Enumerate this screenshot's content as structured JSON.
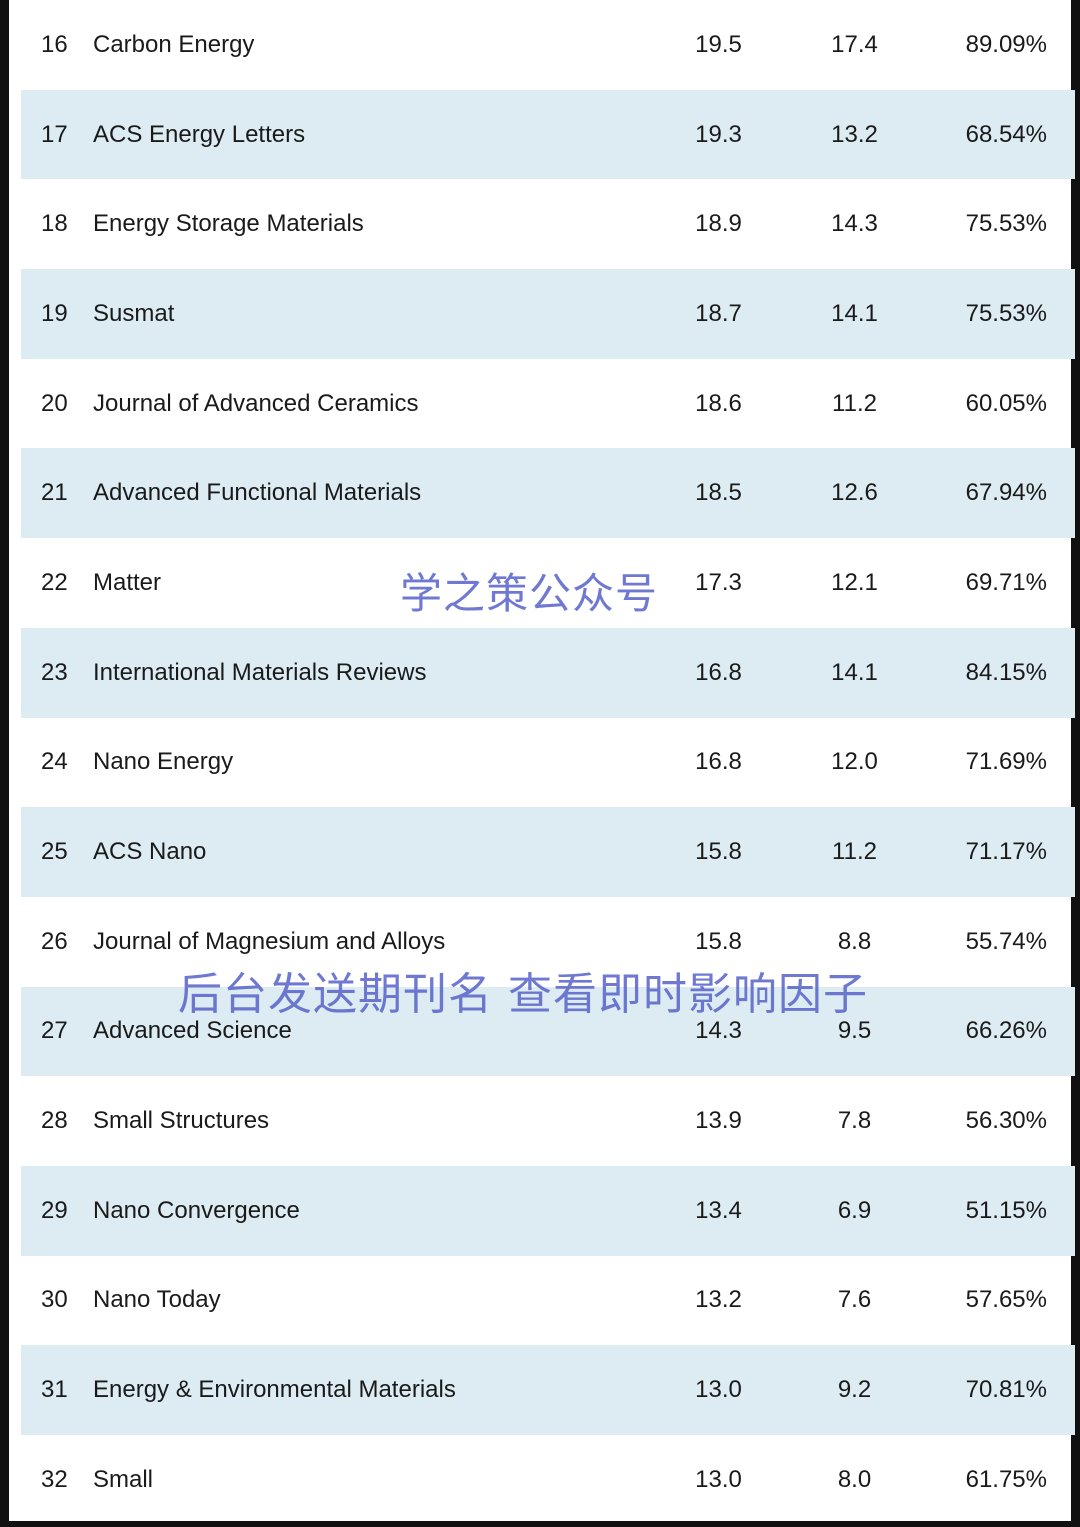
{
  "rows": [
    {
      "rank": "16",
      "name": "Carbon Energy",
      "v1": "19.5",
      "v2": "17.4",
      "v3": "89.09%",
      "shaded": false
    },
    {
      "rank": "17",
      "name": "ACS Energy Letters",
      "v1": "19.3",
      "v2": "13.2",
      "v3": "68.54%",
      "shaded": true
    },
    {
      "rank": "18",
      "name": "Energy Storage Materials",
      "v1": "18.9",
      "v2": "14.3",
      "v3": "75.53%",
      "shaded": false
    },
    {
      "rank": "19",
      "name": "Susmat",
      "v1": "18.7",
      "v2": "14.1",
      "v3": "75.53%",
      "shaded": true
    },
    {
      "rank": "20",
      "name": "Journal of Advanced Ceramics",
      "v1": "18.6",
      "v2": "11.2",
      "v3": "60.05%",
      "shaded": false
    },
    {
      "rank": "21",
      "name": "Advanced Functional Materials",
      "v1": "18.5",
      "v2": "12.6",
      "v3": "67.94%",
      "shaded": true
    },
    {
      "rank": "22",
      "name": "Matter",
      "v1": "17.3",
      "v2": "12.1",
      "v3": "69.71%",
      "shaded": false
    },
    {
      "rank": "23",
      "name": "International Materials Reviews",
      "v1": "16.8",
      "v2": "14.1",
      "v3": "84.15%",
      "shaded": true
    },
    {
      "rank": "24",
      "name": "Nano Energy",
      "v1": "16.8",
      "v2": "12.0",
      "v3": "71.69%",
      "shaded": false
    },
    {
      "rank": "25",
      "name": "ACS Nano",
      "v1": "15.8",
      "v2": "11.2",
      "v3": "71.17%",
      "shaded": true
    },
    {
      "rank": "26",
      "name": "Journal of Magnesium and Alloys",
      "v1": "15.8",
      "v2": "8.8",
      "v3": "55.74%",
      "shaded": false
    },
    {
      "rank": "27",
      "name": "Advanced Science",
      "v1": "14.3",
      "v2": "9.5",
      "v3": "66.26%",
      "shaded": true
    },
    {
      "rank": "28",
      "name": "Small Structures",
      "v1": "13.9",
      "v2": "7.8",
      "v3": "56.30%",
      "shaded": false
    },
    {
      "rank": "29",
      "name": "Nano Convergence",
      "v1": "13.4",
      "v2": "6.9",
      "v3": "51.15%",
      "shaded": true
    },
    {
      "rank": "30",
      "name": "Nano Today",
      "v1": "13.2",
      "v2": "7.6",
      "v3": "57.65%",
      "shaded": false
    },
    {
      "rank": "31",
      "name": "Energy & Environmental Materials",
      "v1": "13.0",
      "v2": "9.2",
      "v3": "70.81%",
      "shaded": true
    },
    {
      "rank": "32",
      "name": "Small",
      "v1": "13.0",
      "v2": "8.0",
      "v3": "61.75%",
      "shaded": false
    }
  ],
  "watermarks": {
    "primary": "学之策公众号",
    "secondary": "后台发送期刊名 查看即时影响因子"
  },
  "colors": {
    "shaded_row": "#ddecf3",
    "watermark": "#5862c9",
    "border": "#111111"
  }
}
